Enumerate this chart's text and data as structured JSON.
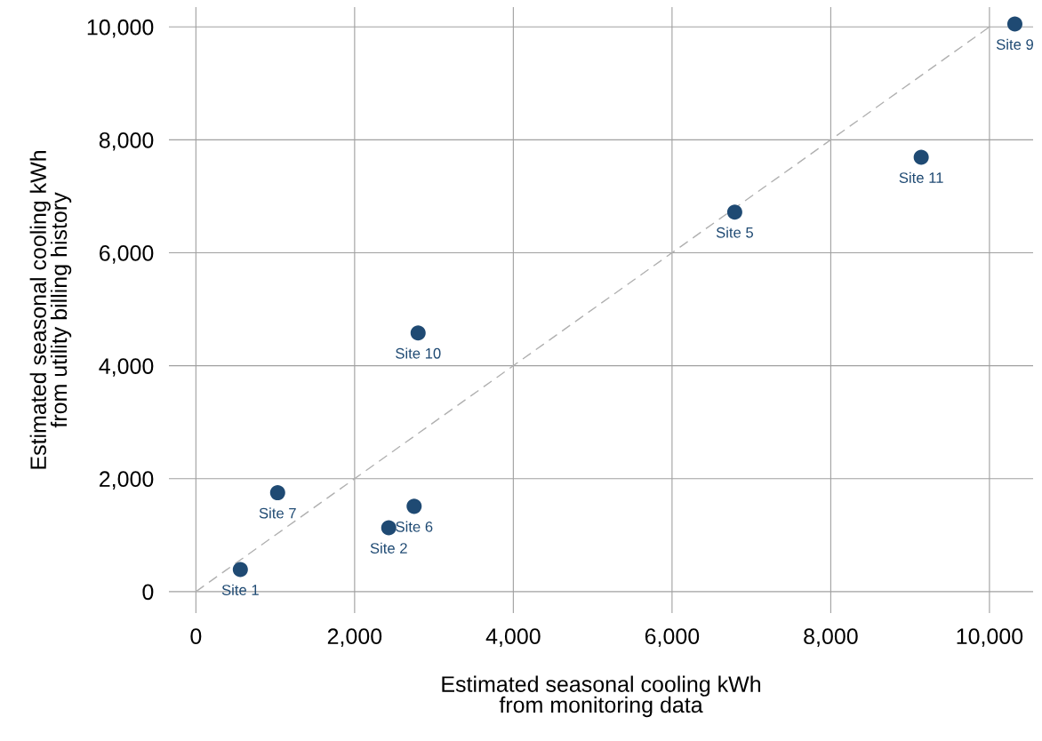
{
  "chart_data": {
    "type": "scatter",
    "xlabel": "Estimated seasonal cooling kWh\nfrom monitoring data",
    "ylabel": "Estimated seasonal cooling kWh\nfrom utility billing history",
    "series": [
      {
        "color": "#1f4a73",
        "x": [
          560,
          1030,
          2430,
          2750,
          2800,
          6790,
          9140,
          10320
        ],
        "values": [
          390,
          1750,
          1130,
          1510,
          4580,
          6720,
          7690,
          10050
        ]
      },
      {
        "type": "line",
        "color": "#b0b0b0",
        "line_style": "dashed",
        "marker": "none",
        "x": [
          0,
          10000
        ],
        "values": [
          0,
          10000
        ]
      }
    ],
    "annotations": [
      {
        "text": "Site 1",
        "x": 560,
        "y": 390
      },
      {
        "text": "Site 7",
        "x": 1030,
        "y": 1750
      },
      {
        "text": "Site 2",
        "x": 2430,
        "y": 1130
      },
      {
        "text": "Site 6",
        "x": 2750,
        "y": 1510
      },
      {
        "text": "Site 10",
        "x": 2800,
        "y": 4580
      },
      {
        "text": "Site 5",
        "x": 6790,
        "y": 6720
      },
      {
        "text": "Site 11",
        "x": 9140,
        "y": 7690
      },
      {
        "text": "Site 9",
        "x": 10320,
        "y": 10050
      }
    ],
    "xlim": [
      -340,
      10550
    ],
    "ylim": [
      -380,
      10350
    ],
    "xticks": [
      0,
      {
        "value": 2000,
        "label": "2,000"
      },
      {
        "value": 4000,
        "label": "4,000"
      },
      {
        "value": 6000,
        "label": "6,000"
      },
      {
        "value": 8000,
        "label": "8,000"
      },
      {
        "value": 10000,
        "label": "10,000"
      }
    ],
    "yticks": [
      0,
      {
        "value": 2000,
        "label": "2,000"
      },
      {
        "value": 4000,
        "label": "4,000"
      },
      {
        "value": 6000,
        "label": "6,000"
      },
      {
        "value": 8000,
        "label": "8,000"
      },
      {
        "value": 10000,
        "label": "10,000"
      }
    ],
    "grid": true,
    "marker": "circle"
  }
}
